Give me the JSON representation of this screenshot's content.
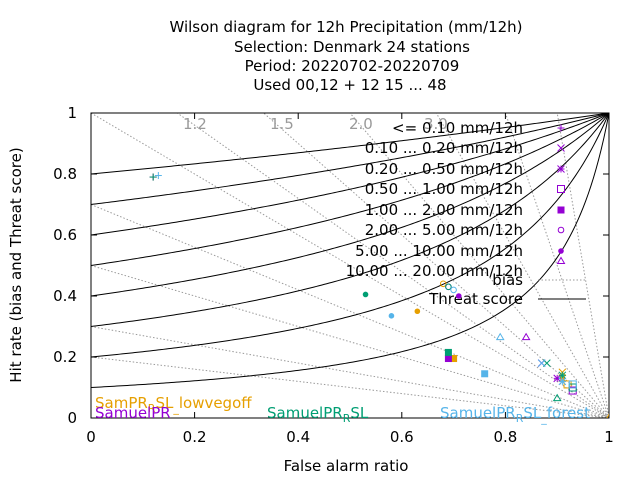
{
  "chart_data": {
    "type": "scatter",
    "title_lines": [
      "Wilson diagram  for 12h Precipitation (mm/12h)",
      "Selection: Denmark     24 stations",
      "Period: 20220702-20220709",
      "Used  00,12  + 12 15 ... 48"
    ],
    "xlabel": "False alarm ratio",
    "ylabel": "Hit rate (bias and Threat score)",
    "xlim": [
      0,
      1
    ],
    "ylim": [
      0,
      1
    ],
    "xticks": [
      "0",
      "0.2",
      "0.4",
      "0.6",
      "0.8",
      "1"
    ],
    "yticks": [
      "0",
      "0.2",
      "0.4",
      "0.6",
      "0.8",
      "1"
    ],
    "bias_labels": [
      "1.2",
      "1.5",
      "2.0",
      "3.0"
    ],
    "bias_values": [
      0.2,
      0.3,
      0.5,
      0.7,
      1.0,
      1.2,
      1.5,
      2.0,
      3.0,
      5.0,
      10.0
    ],
    "threat_values": [
      0.1,
      0.2,
      0.3,
      0.4,
      0.5,
      0.6,
      0.7,
      0.8
    ],
    "legend_placement": "top-right",
    "classes": [
      {
        "label": "<= 0.10 mm/12h",
        "marker": "plus"
      },
      {
        "label": "0.10 ... 0.20 mm/12h",
        "marker": "cross"
      },
      {
        "label": "0.20 ... 0.50 mm/12h",
        "marker": "star"
      },
      {
        "label": "0.50 ... 1.00 mm/12h",
        "marker": "square"
      },
      {
        "label": "1.00 ... 2.00 mm/12h",
        "marker": "filled-square"
      },
      {
        "label": "2.00 ... 5.00 mm/12h",
        "marker": "circle"
      },
      {
        "label": "5.00 ... 10.00 mm/12h",
        "marker": "filled-circle"
      },
      {
        "label": "10.00 ... 20.00 mm/12h",
        "marker": "triangle"
      }
    ],
    "legend_lines": [
      {
        "label": "bias",
        "style": "dotted"
      },
      {
        "label": "Threat score",
        "style": "solid"
      }
    ],
    "experiments": [
      {
        "name": "SamPR_RSL_lowvegoff",
        "color": "#e69f00"
      },
      {
        "name": "SamuelPR",
        "color": "#9400d3"
      },
      {
        "name": "SamuelPR_RSL",
        "color": "#009e73"
      },
      {
        "name": "SamuelPR_RSL_forest",
        "color": "#56b4e9"
      }
    ],
    "experiment_label_text": [
      "SamPR",
      "R",
      "SL",
      "lowvegoff",
      "SamuelPR",
      "SamuelPR",
      "R",
      "SL",
      "SamuelPR",
      "R",
      "SL",
      "forest"
    ],
    "series": [
      {
        "name": "SamPR_RSL_lowvegoff",
        "points": [
          {
            "x": 0.12,
            "y": 0.79,
            "m": "plus"
          },
          {
            "x": 0.91,
            "y": 0.15,
            "m": "cross"
          },
          {
            "x": 0.91,
            "y": 0.13,
            "m": "star"
          },
          {
            "x": 0.92,
            "y": 0.11,
            "m": "square"
          },
          {
            "x": 0.7,
            "y": 0.195,
            "m": "filled-square"
          },
          {
            "x": 0.68,
            "y": 0.44,
            "m": "circle"
          },
          {
            "x": 0.63,
            "y": 0.35,
            "m": "filled-circle"
          },
          {
            "x": 1.0,
            "y": 0.0,
            "m": "triangle"
          }
        ]
      },
      {
        "name": "SamuelPR",
        "points": [
          {
            "x": 0.12,
            "y": 0.79,
            "m": "plus"
          },
          {
            "x": 0.87,
            "y": 0.18,
            "m": "cross"
          },
          {
            "x": 0.9,
            "y": 0.13,
            "m": "star"
          },
          {
            "x": 0.93,
            "y": 0.09,
            "m": "square"
          },
          {
            "x": 0.69,
            "y": 0.195,
            "m": "filled-square"
          },
          {
            "x": 0.69,
            "y": 0.43,
            "m": "circle"
          },
          {
            "x": 0.71,
            "y": 0.4,
            "m": "filled-circle"
          },
          {
            "x": 0.84,
            "y": 0.265,
            "m": "triangle"
          }
        ]
      },
      {
        "name": "SamuelPR_RSL",
        "points": [
          {
            "x": 0.12,
            "y": 0.79,
            "m": "plus"
          },
          {
            "x": 0.88,
            "y": 0.18,
            "m": "cross"
          },
          {
            "x": 0.91,
            "y": 0.14,
            "m": "star"
          },
          {
            "x": 0.93,
            "y": 0.1,
            "m": "square"
          },
          {
            "x": 0.69,
            "y": 0.215,
            "m": "filled-square"
          },
          {
            "x": 0.69,
            "y": 0.43,
            "m": "circle"
          },
          {
            "x": 0.53,
            "y": 0.405,
            "m": "filled-circle"
          },
          {
            "x": 0.9,
            "y": 0.065,
            "m": "triangle"
          }
        ]
      },
      {
        "name": "SamuelPR_RSL_forest",
        "points": [
          {
            "x": 0.13,
            "y": 0.795,
            "m": "plus"
          },
          {
            "x": 0.87,
            "y": 0.18,
            "m": "cross"
          },
          {
            "x": 0.91,
            "y": 0.12,
            "m": "star"
          },
          {
            "x": 0.93,
            "y": 0.11,
            "m": "square"
          },
          {
            "x": 0.76,
            "y": 0.145,
            "m": "filled-square"
          },
          {
            "x": 0.7,
            "y": 0.42,
            "m": "circle"
          },
          {
            "x": 0.58,
            "y": 0.335,
            "m": "filled-circle"
          },
          {
            "x": 0.79,
            "y": 0.265,
            "m": "triangle"
          }
        ]
      }
    ]
  }
}
